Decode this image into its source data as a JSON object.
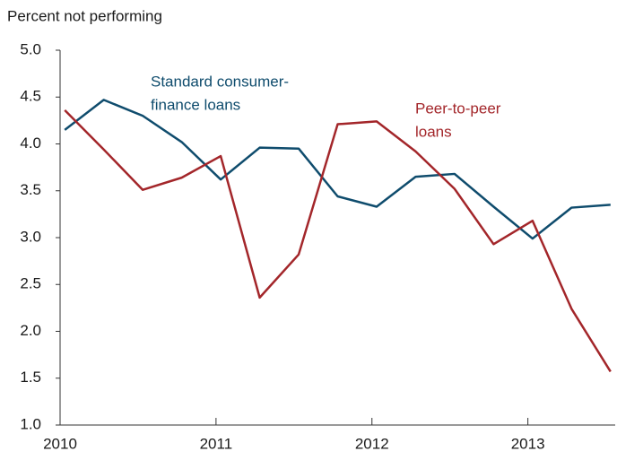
{
  "chart_data": {
    "type": "line",
    "title": "Percent not performing",
    "x": [
      2010.03,
      2010.28,
      2010.53,
      2010.78,
      2011.03,
      2011.28,
      2011.53,
      2011.78,
      2012.03,
      2012.28,
      2012.53,
      2012.78,
      2013.03,
      2013.28,
      2013.53
    ],
    "series": [
      {
        "name": [
          "Standard consumer-",
          "finance loans"
        ],
        "color": "#0f4c6d",
        "values": [
          4.15,
          4.47,
          4.3,
          4.02,
          3.62,
          3.96,
          3.95,
          3.44,
          3.33,
          3.65,
          3.68,
          3.33,
          2.99,
          3.32,
          3.35
        ]
      },
      {
        "name": [
          "Peer-to-peer",
          "loans"
        ],
        "color": "#a3262a",
        "values": [
          4.36,
          3.94,
          3.51,
          3.64,
          3.87,
          2.36,
          2.82,
          4.21,
          4.24,
          3.92,
          3.52,
          2.93,
          3.18,
          2.24,
          1.57
        ]
      }
    ],
    "xlim": [
      2010,
      2013.56
    ],
    "xticks": [
      2010,
      2011,
      2012,
      2013
    ],
    "ylim": [
      1.0,
      5.0
    ],
    "yticks": [
      {
        "value": 1.0,
        "label": "1.0"
      },
      {
        "value": 1.5,
        "label": "1.5"
      },
      {
        "value": 2.0,
        "label": "2.0"
      },
      {
        "value": 2.5,
        "label": "2.5"
      },
      {
        "value": 3.0,
        "label": "3.0"
      },
      {
        "value": 3.5,
        "label": "3.5"
      },
      {
        "value": 4.0,
        "label": "4.0"
      },
      {
        "value": 4.5,
        "label": "4.5"
      },
      {
        "value": 5.0,
        "label": "5.0"
      }
    ],
    "grid": false
  }
}
